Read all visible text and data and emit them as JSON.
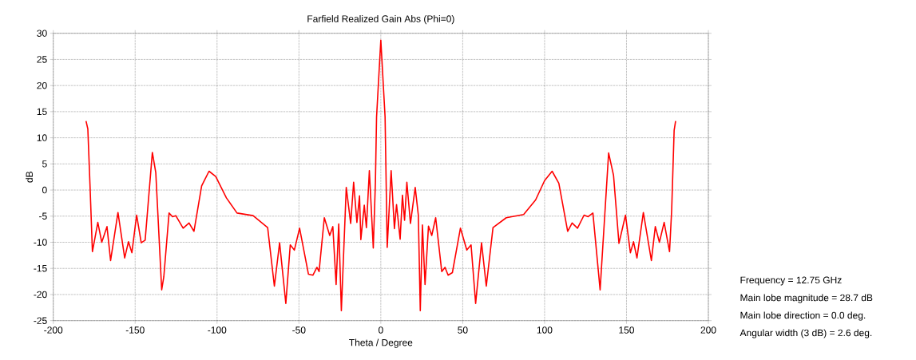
{
  "chart_data": {
    "type": "line",
    "title": "Farfield Realized Gain Abs (Phi=0)",
    "xlabel": "Theta / Degree",
    "ylabel": "dB",
    "xlim": [
      -200,
      200
    ],
    "ylim": [
      -25,
      30
    ],
    "xticks": [
      -200,
      -150,
      -100,
      -50,
      0,
      50,
      100,
      150,
      200
    ],
    "yticks": [
      -25,
      -20,
      -15,
      -10,
      -5,
      0,
      5,
      10,
      15,
      20,
      25,
      30
    ],
    "grid": true,
    "x": [
      -180,
      -178.9,
      -177.6,
      -176.1,
      -172.8,
      -170.4,
      -167.2,
      -165,
      -160.5,
      -156.4,
      -154.1,
      -152,
      -149.1,
      -146.3,
      -143.9,
      -139.5,
      -137.4,
      -133.8,
      -132.5,
      -129.3,
      -127.2,
      -125.2,
      -120.7,
      -117.1,
      -114.1,
      -109.4,
      -104.9,
      -100.8,
      -94.3,
      -87.8,
      -78,
      -69.1,
      -65,
      -61.8,
      -58,
      -55.3,
      -52.8,
      -49.6,
      -44.2,
      -41.5,
      -39,
      -37.7,
      -34.5,
      -31.2,
      -29.3,
      -27.3,
      -25.7,
      -24.1,
      -21.1,
      -18.4,
      -16.6,
      -14.6,
      -13,
      -12.2,
      -10.1,
      -8.8,
      -7,
      -4.6,
      -3.3,
      -2.6,
      0,
      2.6,
      3.9,
      6.3,
      8.3,
      9.6,
      11.8,
      13.2,
      14.5,
      15.9,
      18.1,
      21,
      22.9,
      24.1,
      25.4,
      27,
      29.1,
      31.1,
      33.5,
      37.2,
      39.2,
      41.1,
      43.7,
      48.6,
      52.5,
      55.1,
      57.9,
      61.5,
      64.4,
      68.5,
      76.6,
      87.2,
      94.5,
      100,
      104.6,
      108.7,
      114.1,
      116.8,
      120.1,
      124.1,
      126.6,
      129.5,
      133.9,
      139.1,
      142.1,
      145.4,
      149.4,
      152.4,
      154.3,
      156.4,
      160.3,
      165.2,
      167.6,
      170.1,
      173,
      176.3,
      177.6,
      179.1,
      180
    ],
    "series": [
      {
        "color": "#ff0000",
        "values": [
          13.2,
          11.7,
          1.2,
          -11.8,
          -6.2,
          -10,
          -7,
          -13.5,
          -4.3,
          -13,
          -9.9,
          -12,
          -4.8,
          -10.1,
          -9.6,
          7.2,
          3.3,
          -19.1,
          -16.6,
          -4.4,
          -5.1,
          -4.9,
          -7.3,
          -6.3,
          -7.9,
          0.8,
          3.6,
          2.6,
          -1.5,
          -4.4,
          -4.9,
          -7.2,
          -18.4,
          -10.1,
          -21.7,
          -10.5,
          -11.5,
          -7.3,
          -16.1,
          -16.3,
          -14.8,
          -15.6,
          -5.3,
          -8.7,
          -7,
          -18.1,
          -6.5,
          -23.1,
          0.5,
          -6.4,
          1.5,
          -6.2,
          -1.1,
          -9.5,
          -2.9,
          -7.2,
          3.7,
          -11.1,
          1.5,
          14,
          28.7,
          14,
          -11,
          3.7,
          -7.4,
          -2.8,
          -9.4,
          -1,
          -5.8,
          1.5,
          -6.4,
          0.5,
          -4.8,
          -23.1,
          -6.7,
          -18.1,
          -6.9,
          -8.7,
          -5.3,
          -15.6,
          -14.8,
          -16.3,
          -15.8,
          -7.3,
          -11.5,
          -10.5,
          -21.7,
          -10.1,
          -18.4,
          -7.2,
          -5.3,
          -4.7,
          -1.9,
          1.8,
          3.6,
          1.3,
          -7.9,
          -6.3,
          -7.3,
          -4.8,
          -5.1,
          -4.4,
          -19.1,
          7.1,
          2.8,
          -10.2,
          -4.8,
          -12,
          -9.9,
          -13,
          -4.3,
          -13.5,
          -7,
          -10,
          -6.2,
          -11.8,
          -3.8,
          11.4,
          13.2
        ]
      }
    ],
    "annotations": [
      "Frequency = 12.75 GHz",
      "Main lobe magnitude =     28.7 dB",
      "Main lobe direction =    0.0 deg.",
      "Angular width (3 dB) =    2.6 deg."
    ]
  }
}
